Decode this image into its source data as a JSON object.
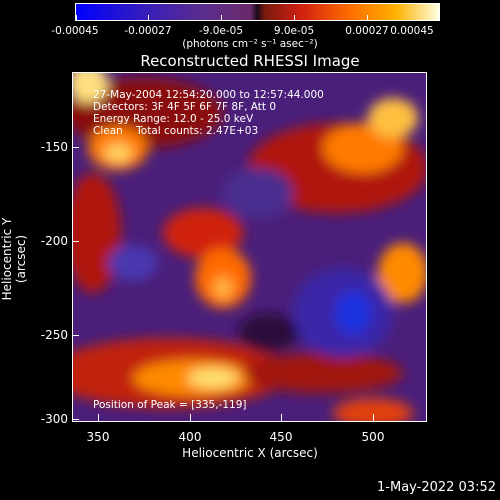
{
  "colorbar": {
    "ticks": [
      "-0.00045",
      "-0.00027",
      "-9.0e-05",
      "9.0e-05",
      "0.00027",
      "0.00045"
    ],
    "units_label": "(photons cm⁻² s⁻¹ asec⁻²)"
  },
  "plot": {
    "title": "Reconstructed RHESSI Image",
    "time_range": "27-May-2004 12:54:20.000 to 12:57:44.000",
    "detectors": "Detectors: 3F 4F 5F 6F 7F 8F, Att 0",
    "energy_range": "Energy Range: 12.0 - 25.0 keV",
    "clean": "Clean    Total counts: 2.47E+03",
    "peak": "Position of Peak = [335,-119]",
    "xlabel": "Heliocentric X (arcsec)",
    "ylabel": "Heliocentric Y (arcsec)",
    "x_ticks": [
      "350",
      "400",
      "450",
      "500"
    ],
    "y_ticks": [
      "-150",
      "-200",
      "-250",
      "-300"
    ]
  },
  "footer": {
    "date": "1-May-2022 03:52"
  },
  "colors": {
    "negative": "#0000ff",
    "neutral": "#000000",
    "positive": "#ff6a00",
    "peak": "#ffffe0"
  }
}
